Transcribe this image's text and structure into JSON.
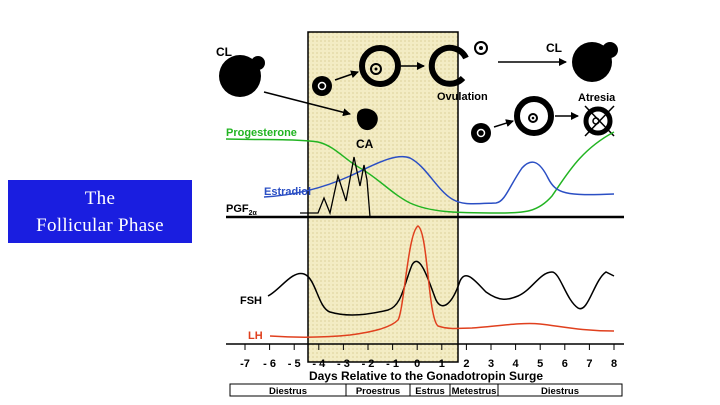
{
  "title": {
    "line1": "The",
    "line2": "Follicular Phase"
  },
  "labels": {
    "cl_left": "CL",
    "cl_right": "CL",
    "ovulation": "Ovulation",
    "atresia": "Atresia",
    "ca": "CA",
    "progesterone": "Progesterone",
    "estradiol": "Estradiol",
    "pgf_main": "PGF",
    "pgf_sub": "2α",
    "fsh": "FSH",
    "lh": "LH"
  },
  "colors": {
    "progesterone": "#22b422",
    "estradiol": "#2b4fc4",
    "lh": "#e0401e",
    "fsh": "#000000",
    "highlight": "#f3ecc4",
    "title_bg": "#1a1ee0"
  },
  "axis": {
    "ticks": [
      "-7",
      "- 6",
      "- 5",
      "- 4",
      "- 3",
      "- 2",
      "- 1",
      "0",
      "1",
      "2",
      "3",
      "4",
      "5",
      "6",
      "7",
      "8"
    ],
    "label": "Days Relative to the Gonadotropin Surge"
  },
  "phases": [
    "Diestrus",
    "Proestrus",
    "Estrus",
    "Metestrus",
    "Diestrus"
  ]
}
